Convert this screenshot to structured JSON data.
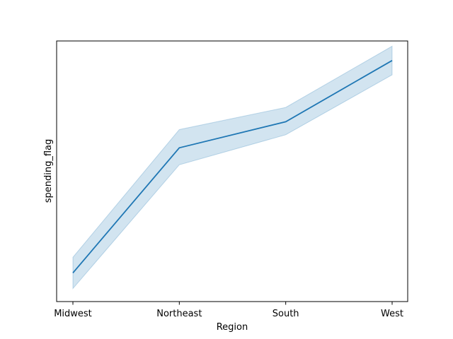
{
  "chart_data": {
    "type": "line",
    "xlabel": "Region",
    "ylabel": "spending_flag",
    "categories": [
      "Midwest",
      "Northeast",
      "South",
      "West"
    ],
    "series": [
      {
        "values": [
          0.11,
          0.59,
          0.69,
          0.925
        ],
        "ci_lower": [
          0.05,
          0.525,
          0.64,
          0.87
        ],
        "ci_upper": [
          0.17,
          0.66,
          0.745,
          0.98
        ]
      }
    ],
    "ylim": [
      0.0,
      1.0
    ],
    "yticks_shown": false,
    "grid": false,
    "legend": "none",
    "colors": {
      "line": "#1f77b4",
      "band": "#1f77b4"
    }
  }
}
